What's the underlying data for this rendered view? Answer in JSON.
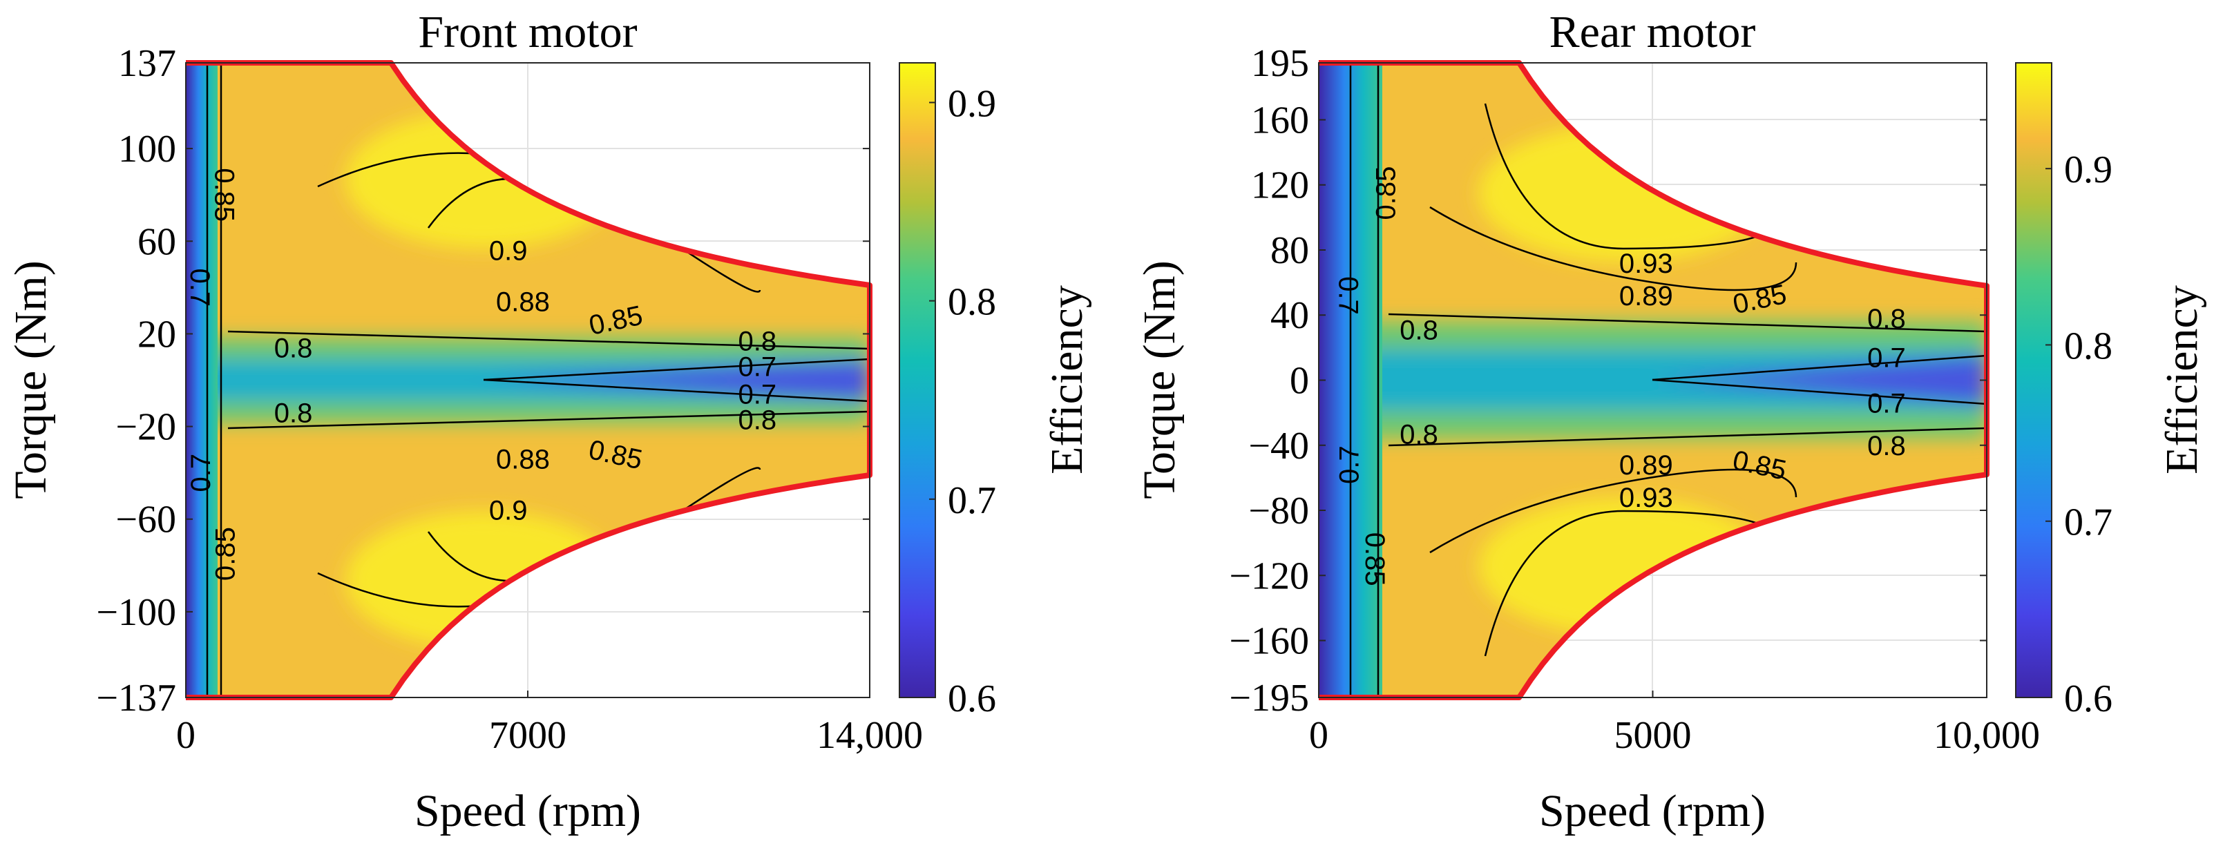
{
  "chart_data": [
    {
      "type": "heatmap",
      "title": "Front motor",
      "xlabel": "Speed (rpm)",
      "ylabel": "Torque (Nm)",
      "colorbar_label": "Efficiency",
      "xlim": [
        0,
        14000
      ],
      "ylim": [
        -137,
        137
      ],
      "x_ticks": [
        0,
        7000,
        14000
      ],
      "x_tick_labels": [
        "0",
        "7000",
        "14,000"
      ],
      "y_ticks": [
        137,
        100,
        60,
        20,
        -20,
        -60,
        -100,
        -137
      ],
      "y_tick_labels": [
        "137",
        "100",
        "60",
        "20",
        "−20",
        "−60",
        "−100",
        "−137"
      ],
      "colorbar_range": [
        0.6,
        0.92
      ],
      "colorbar_ticks": [
        0.9,
        0.8,
        0.7,
        0.6
      ],
      "colorbar_tick_labels": [
        "0.9",
        "0.8",
        "0.7",
        "0.6"
      ],
      "corner_speed": 4200,
      "max_speed": 14000,
      "torque_at_max_speed": 41,
      "peak_efficiency": 0.91,
      "peak_location": {
        "speed": 6000,
        "torque": 85
      },
      "contour_levels": [
        0.7,
        0.8,
        0.85,
        0.88,
        0.9
      ],
      "contour_labels": [
        {
          "text": "0.85",
          "speed": 800,
          "torque": 80,
          "angle": 90
        },
        {
          "text": "0.7",
          "speed": 300,
          "torque": 40,
          "angle": 90
        },
        {
          "text": "0.9",
          "speed": 6600,
          "torque": 56,
          "angle": 0
        },
        {
          "text": "0.88",
          "speed": 6900,
          "torque": 34,
          "angle": 0
        },
        {
          "text": "0.85",
          "speed": 8800,
          "torque": 26,
          "angle": -12
        },
        {
          "text": "0.8",
          "speed": 2200,
          "torque": 14,
          "angle": 0
        },
        {
          "text": "0.8",
          "speed": 11700,
          "torque": 17,
          "angle": 0
        },
        {
          "text": "0.7",
          "speed": 11700,
          "torque": 6,
          "angle": 0
        },
        {
          "text": "0.7",
          "speed": 11700,
          "torque": -6,
          "angle": 0
        },
        {
          "text": "0.8",
          "speed": 11700,
          "torque": -17,
          "angle": 0
        },
        {
          "text": "0.8",
          "speed": 2200,
          "torque": -14,
          "angle": 0
        },
        {
          "text": "0.7",
          "speed": 300,
          "torque": -40,
          "angle": -90
        },
        {
          "text": "0.88",
          "speed": 6900,
          "torque": -34,
          "angle": 0
        },
        {
          "text": "0.85",
          "speed": 8800,
          "torque": -32,
          "angle": 12
        },
        {
          "text": "0.9",
          "speed": 6600,
          "torque": -56,
          "angle": 0
        },
        {
          "text": "0.85",
          "speed": 800,
          "torque": -75,
          "angle": -90
        }
      ]
    },
    {
      "type": "heatmap",
      "title": "Rear motor",
      "xlabel": "Speed (rpm)",
      "ylabel": "Torque (Nm)",
      "colorbar_label": "Efficiency",
      "xlim": [
        0,
        10000
      ],
      "ylim": [
        -195,
        195
      ],
      "x_ticks": [
        0,
        5000,
        10000
      ],
      "x_tick_labels": [
        "0",
        "5000",
        "10,000"
      ],
      "y_ticks": [
        195,
        160,
        120,
        80,
        40,
        0,
        -40,
        -80,
        -120,
        -160,
        -195
      ],
      "y_tick_labels": [
        "195",
        "160",
        "120",
        "80",
        "40",
        "0",
        "−40",
        "−80",
        "−120",
        "−160",
        "−195"
      ],
      "colorbar_range": [
        0.6,
        0.96
      ],
      "colorbar_ticks": [
        0.9,
        0.8,
        0.7,
        0.6
      ],
      "colorbar_tick_labels": [
        "0.9",
        "0.8",
        "0.7",
        "0.6"
      ],
      "corner_speed": 3000,
      "max_speed": 10000,
      "torque_at_max_speed": 58,
      "peak_efficiency": 0.95,
      "peak_location": {
        "speed": 4300,
        "torque": 110
      },
      "contour_levels": [
        0.7,
        0.8,
        0.85,
        0.89,
        0.93
      ],
      "contour_labels": [
        {
          "text": "0.85",
          "speed": 1000,
          "torque": 115,
          "angle": -90
        },
        {
          "text": "0.7",
          "speed": 450,
          "torque": 52,
          "angle": 90
        },
        {
          "text": "0.93",
          "speed": 4900,
          "torque": 72,
          "angle": 0
        },
        {
          "text": "0.89",
          "speed": 4900,
          "torque": 52,
          "angle": 0
        },
        {
          "text": "0.85",
          "speed": 6600,
          "torque": 50,
          "angle": -12
        },
        {
          "text": "0.8",
          "speed": 1500,
          "torque": 31,
          "angle": 0
        },
        {
          "text": "0.8",
          "speed": 8500,
          "torque": 38,
          "angle": 0
        },
        {
          "text": "0.7",
          "speed": 8500,
          "torque": 14,
          "angle": 0
        },
        {
          "text": "0.7",
          "speed": 8500,
          "torque": -14,
          "angle": 0
        },
        {
          "text": "0.8",
          "speed": 8500,
          "torque": -40,
          "angle": 0
        },
        {
          "text": "0.8",
          "speed": 1500,
          "torque": -33,
          "angle": 0
        },
        {
          "text": "0.7",
          "speed": 450,
          "torque": -52,
          "angle": -90
        },
        {
          "text": "0.89",
          "speed": 4900,
          "torque": -52,
          "angle": 0
        },
        {
          "text": "0.93",
          "speed": 4900,
          "torque": -72,
          "angle": 0
        },
        {
          "text": "0.85",
          "speed": 6600,
          "torque": -52,
          "angle": 12
        },
        {
          "text": "0.85",
          "speed": 850,
          "torque": -110,
          "angle": 90
        }
      ]
    }
  ]
}
